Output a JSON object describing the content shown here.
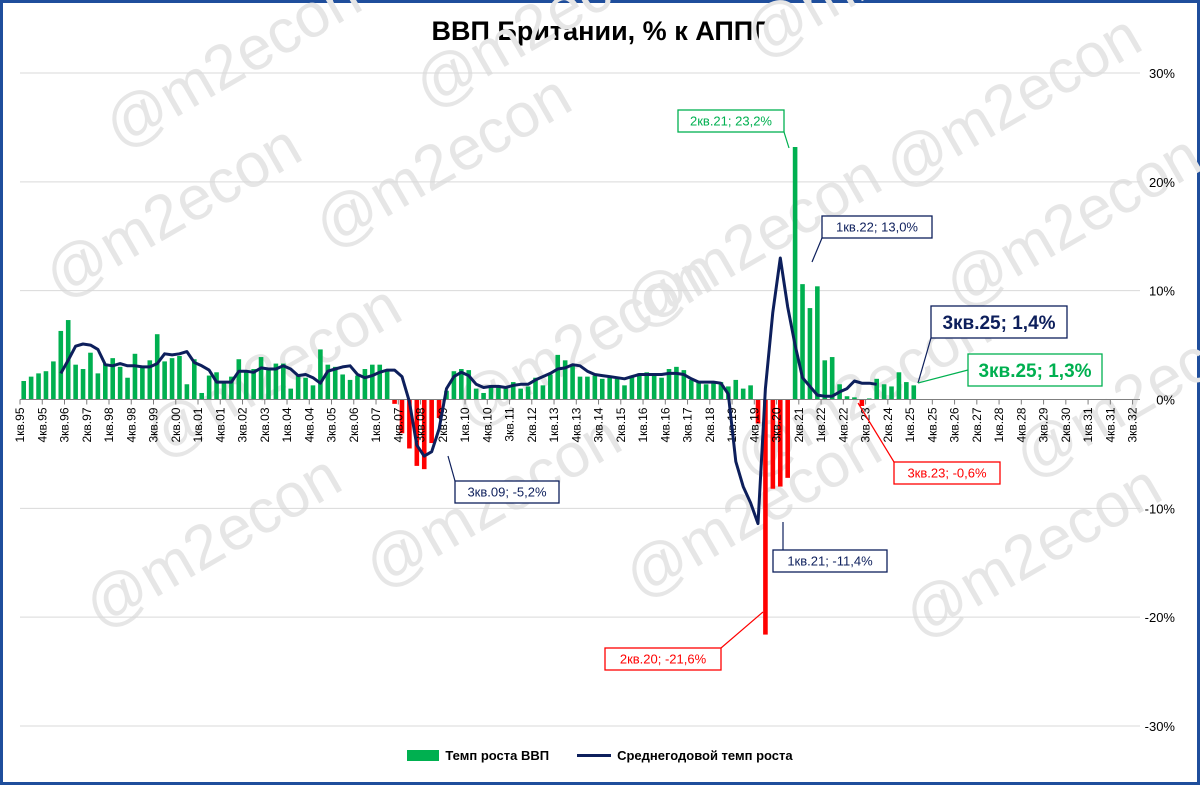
{
  "chart_data": {
    "type": "bar",
    "title": "ВВП Британии, % к АППГ",
    "ylim": [
      -30,
      30
    ],
    "y_ticks": [
      "30%",
      "20%",
      "10%",
      "0%",
      "-10%",
      "-20%",
      "-30%"
    ],
    "x_tick_labels": [
      "1кв.95",
      "4кв.95",
      "3кв.96",
      "2кв.97",
      "1кв.98",
      "4кв.98",
      "3кв.99",
      "2кв.00",
      "1кв.01",
      "4кв.01",
      "3кв.02",
      "2кв.03",
      "1кв.04",
      "4кв.04",
      "3кв.05",
      "2кв.06",
      "1кв.07",
      "4кв.07",
      "3кв.08",
      "2кв.09",
      "1кв.10",
      "4кв.10",
      "3кв.11",
      "2кв.12",
      "1кв.13",
      "4кв.13",
      "3кв.14",
      "2кв.15",
      "1кв.16",
      "4кв.16",
      "3кв.17",
      "2кв.18",
      "1кв.19",
      "4кв.19",
      "3кв.20",
      "2кв.21",
      "1кв.22",
      "4кв.22",
      "3кв.23",
      "2кв.24",
      "1кв.25",
      "4кв.25",
      "3кв.26",
      "2кв.27",
      "1кв.28",
      "4кв.28",
      "3кв.29",
      "2кв.30",
      "1кв.31",
      "4кв.31",
      "3кв.32"
    ],
    "grid": true,
    "legend_position": "bottom",
    "series": [
      {
        "name": "Темп роста ВВП",
        "kind": "bar",
        "color_pos": "#00b050",
        "color_neg": "#ff0000",
        "start_quarter": "1кв.95",
        "values": [
          1.7,
          2.1,
          2.4,
          2.6,
          3.5,
          6.3,
          7.3,
          3.2,
          2.8,
          4.3,
          2.4,
          3.3,
          3.8,
          3.0,
          2.0,
          4.2,
          3.0,
          3.6,
          6.0,
          3.5,
          3.8,
          4.0,
          1.4,
          3.7,
          0.6,
          2.2,
          2.5,
          1.7,
          2.1,
          3.7,
          2.5,
          2.8,
          3.9,
          2.7,
          3.3,
          3.3,
          1.0,
          2.3,
          2.0,
          1.3,
          4.6,
          3.2,
          3.0,
          2.3,
          1.8,
          2.2,
          2.8,
          3.2,
          3.2,
          2.6,
          -0.4,
          -3.1,
          -4.5,
          -6.1,
          -6.4,
          -4.0,
          -1.7,
          0.8,
          2.6,
          2.8,
          2.7,
          1.0,
          0.6,
          1.3,
          1.3,
          1.0,
          1.6,
          1.0,
          1.2,
          2.0,
          1.3,
          2.3,
          4.1,
          3.6,
          3.1,
          2.1,
          2.1,
          2.2,
          1.9,
          2.0,
          1.9,
          1.3,
          2.2,
          2.4,
          2.5,
          2.2,
          2.0,
          2.8,
          3.0,
          2.7,
          1.8,
          1.6,
          1.4,
          1.6,
          1.6,
          1.2,
          1.8,
          1.0,
          1.3,
          -2.2,
          -21.6,
          -8.2,
          -8.0,
          -7.2,
          23.2,
          10.6,
          8.4,
          10.4,
          3.6,
          3.9,
          1.4,
          0.3,
          0.2,
          -0.6,
          0.1,
          1.9,
          1.4,
          1.2,
          2.5,
          1.6,
          1.3
        ]
      },
      {
        "name": "Среднегодовой темп роста",
        "kind": "line",
        "color": "#0d1f5c",
        "start_quarter": "2кв.96",
        "values": [
          2.4,
          3.6,
          4.9,
          5.1,
          5.0,
          4.6,
          3.2,
          3.1,
          3.3,
          3.1,
          3.1,
          3.0,
          3.0,
          3.3,
          4.2,
          4.1,
          4.2,
          4.4,
          3.4,
          3.1,
          2.7,
          1.6,
          1.6,
          1.6,
          2.6,
          2.6,
          2.5,
          2.9,
          2.8,
          2.8,
          3.1,
          2.8,
          2.2,
          2.3,
          2.0,
          1.5,
          2.6,
          2.8,
          3.0,
          3.1,
          2.3,
          2.0,
          2.2,
          2.5,
          2.7,
          2.7,
          2.1,
          -0.2,
          -4.2,
          -5.2,
          -4.8,
          -2.7,
          1.0,
          2.1,
          2.5,
          2.2,
          1.4,
          1.1,
          1.2,
          1.2,
          1.1,
          1.3,
          1.4,
          1.4,
          1.8,
          2.1,
          2.4,
          2.8,
          2.9,
          3.2,
          3.1,
          2.6,
          2.3,
          2.2,
          2.1,
          2.0,
          1.9,
          2.1,
          2.3,
          2.3,
          2.3,
          2.3,
          2.4,
          2.4,
          2.3,
          1.9,
          1.6,
          1.6,
          1.6,
          1.5,
          0.5,
          -5.7,
          -8.0,
          -9.5,
          -11.4,
          1.0,
          8.0,
          13.0,
          8.5,
          5.0,
          2.0,
          1.2,
          0.4,
          0.3,
          0.3,
          0.7,
          1.0,
          1.7,
          1.5,
          1.5,
          1.4
        ]
      }
    ],
    "annotations": [
      {
        "text": "2кв.21; 23,2%",
        "style": "green"
      },
      {
        "text": "1кв.22; 13,0%",
        "style": "navy"
      },
      {
        "text": "3кв.25; 1,4%",
        "style": "navy-large"
      },
      {
        "text": "3кв.25; 1,3%",
        "style": "green-large"
      },
      {
        "text": "3кв.23; -0,6%",
        "style": "red"
      },
      {
        "text": "3кв.09; -5,2%",
        "style": "navy"
      },
      {
        "text": "1кв.21; -11,4%",
        "style": "navy"
      },
      {
        "text": "2кв.20; -21,6%",
        "style": "red"
      }
    ],
    "watermark": "@m2econ"
  }
}
